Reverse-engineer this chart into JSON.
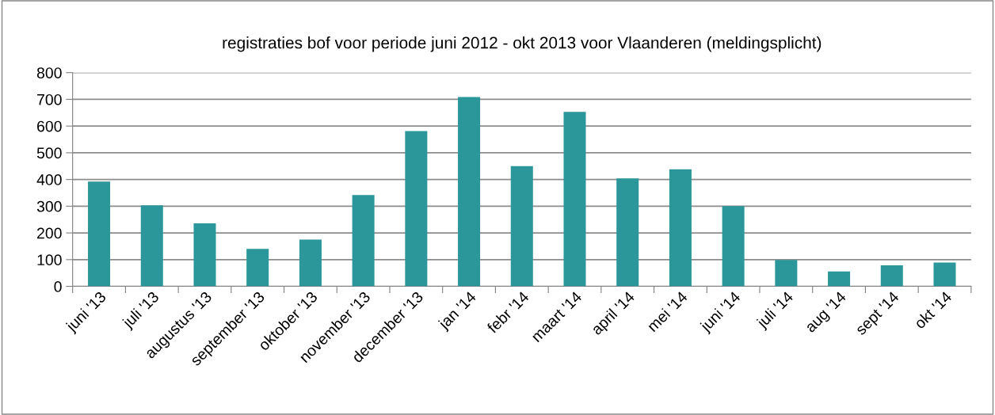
{
  "chart_data": {
    "type": "bar",
    "title": "registraties bof voor periode juni 2012 - okt 2013 voor Vlaanderen (meldingsplicht)",
    "categories": [
      "juni '13",
      "juli '13",
      "augustus '13",
      "september '13",
      "oktober '13",
      "november '13",
      "december '13",
      "jan '14",
      "febr '14",
      "maart '14",
      "april '14",
      "mei '14",
      "juni '14",
      "juli '14",
      "aug '14",
      "sept '14",
      "okt '14"
    ],
    "values": [
      392,
      303,
      236,
      140,
      175,
      342,
      581,
      709,
      450,
      653,
      404,
      438,
      300,
      99,
      56,
      79,
      89
    ],
    "color": "#2b979b",
    "ylim": [
      0,
      800
    ],
    "yticks": [
      0,
      100,
      200,
      300,
      400,
      500,
      600,
      700,
      800
    ],
    "grid": "y",
    "legend": false
  }
}
